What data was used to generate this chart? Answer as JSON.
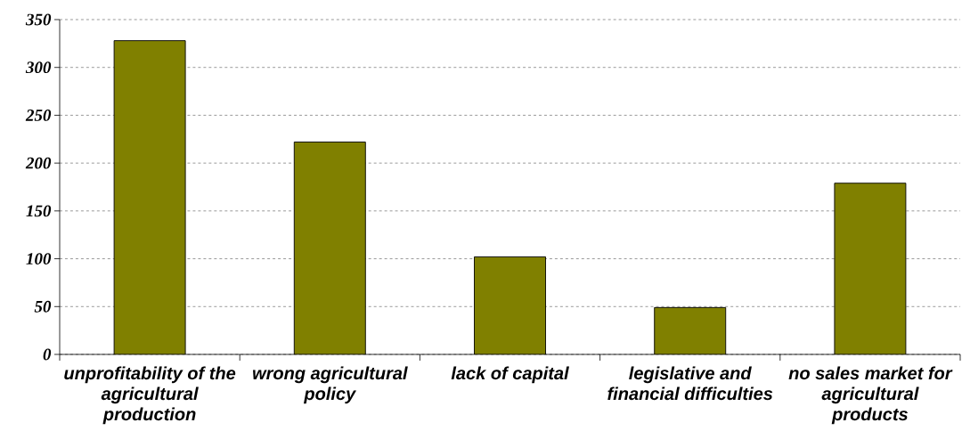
{
  "chart_data": {
    "type": "bar",
    "categories": [
      "unprofitability of the agricultural production",
      "wrong agricultural policy",
      "lack of capital",
      "legislative and financial difficulties",
      "no sales market for agricultural products"
    ],
    "values": [
      328,
      222,
      102,
      49,
      179
    ],
    "color": "#808000",
    "ylim": [
      0,
      350
    ],
    "yticks": [
      0,
      50,
      100,
      150,
      200,
      250,
      300,
      350
    ],
    "grid": "y"
  }
}
